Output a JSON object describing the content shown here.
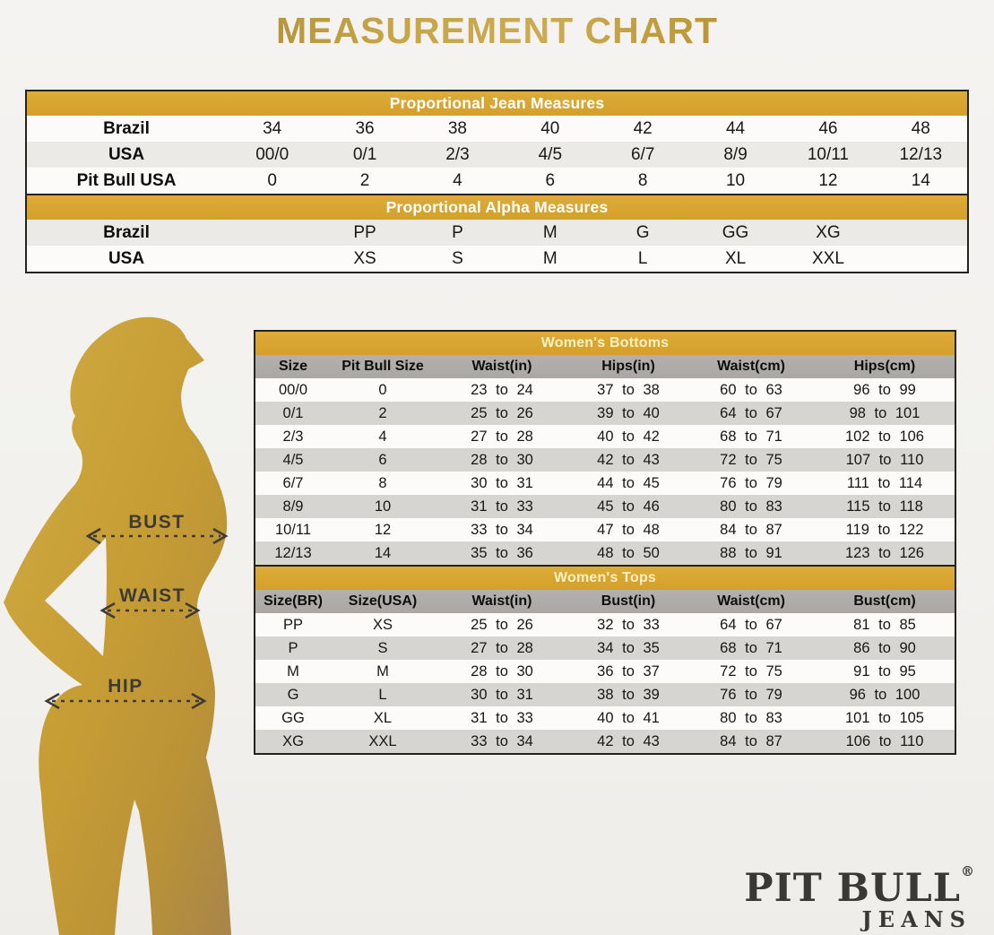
{
  "title": "MEASUREMENT CHART",
  "colors": {
    "gold_band": "#d4a02a",
    "gray_header": "#aaa7a4",
    "row_stripe_light": "#eceae7",
    "row_stripe_dark": "#d7d5d2",
    "background": "#f2f1ee",
    "silhouette_gold": "#c79e35",
    "logo_gray": "#3a3836"
  },
  "chart_data": [
    {
      "type": "table",
      "title": "Proportional Jean Measures",
      "rows": [
        {
          "label": "Brazil",
          "values": [
            "34",
            "36",
            "38",
            "40",
            "42",
            "44",
            "46",
            "48"
          ]
        },
        {
          "label": "USA",
          "values": [
            "00/0",
            "0/1",
            "2/3",
            "4/5",
            "6/7",
            "8/9",
            "10/11",
            "12/13"
          ]
        },
        {
          "label": "Pit Bull USA",
          "values": [
            "0",
            "2",
            "4",
            "6",
            "8",
            "10",
            "12",
            "14"
          ]
        }
      ]
    },
    {
      "type": "table",
      "title": "Proportional Alpha Measures",
      "rows": [
        {
          "label": "Brazil",
          "values": [
            "",
            "PP",
            "P",
            "M",
            "G",
            "GG",
            "XG",
            ""
          ]
        },
        {
          "label": "USA",
          "values": [
            "",
            "XS",
            "S",
            "M",
            "L",
            "XL",
            "XXL",
            ""
          ]
        }
      ]
    },
    {
      "type": "table",
      "title": "Women's Bottoms",
      "columns": [
        "Size",
        "Pit Bull Size",
        "Waist(in)",
        "Hips(in)",
        "Waist(cm)",
        "Hips(cm)"
      ],
      "rows": [
        [
          "00/0",
          "0",
          "23 to 24",
          "37 to 38",
          "60 to 63",
          "96 to 99"
        ],
        [
          "0/1",
          "2",
          "25 to 26",
          "39 to 40",
          "64 to 67",
          "98 to 101"
        ],
        [
          "2/3",
          "4",
          "27 to 28",
          "40 to 42",
          "68 to 71",
          "102 to 106"
        ],
        [
          "4/5",
          "6",
          "28 to 30",
          "42 to 43",
          "72 to 75",
          "107 to 110"
        ],
        [
          "6/7",
          "8",
          "30 to 31",
          "44 to 45",
          "76 to 79",
          "111 to 114"
        ],
        [
          "8/9",
          "10",
          "31 to 33",
          "45 to 46",
          "80 to 83",
          "115 to 118"
        ],
        [
          "10/11",
          "12",
          "33 to 34",
          "47 to 48",
          "84 to 87",
          "119 to 122"
        ],
        [
          "12/13",
          "14",
          "35 to 36",
          "48 to 50",
          "88 to 91",
          "123 to 126"
        ]
      ]
    },
    {
      "type": "table",
      "title": "Women's Tops",
      "columns": [
        "Size(BR)",
        "Size(USA)",
        "Waist(in)",
        "Bust(in)",
        "Waist(cm)",
        "Bust(cm)"
      ],
      "rows": [
        [
          "PP",
          "XS",
          "25 to 26",
          "32 to 33",
          "64 to 67",
          "81 to 85"
        ],
        [
          "P",
          "S",
          "27 to 28",
          "34 to 35",
          "68 to 71",
          "86 to 90"
        ],
        [
          "M",
          "M",
          "28 to 30",
          "36 to 37",
          "72 to 75",
          "91 to 95"
        ],
        [
          "G",
          "L",
          "30 to 31",
          "38 to 39",
          "76 to 79",
          "96 to 100"
        ],
        [
          "GG",
          "XL",
          "31 to 33",
          "40 to 41",
          "80 to 83",
          "101 to 105"
        ],
        [
          "XG",
          "XXL",
          "33 to 34",
          "42 to 43",
          "84 to 87",
          "106 to 110"
        ]
      ]
    }
  ],
  "figure": {
    "labels": {
      "bust": "BUST",
      "waist": "WAIST",
      "hip": "HIP"
    }
  },
  "logo": {
    "brand": "PIT BULL",
    "registered": "®",
    "sub": "JEANS"
  }
}
